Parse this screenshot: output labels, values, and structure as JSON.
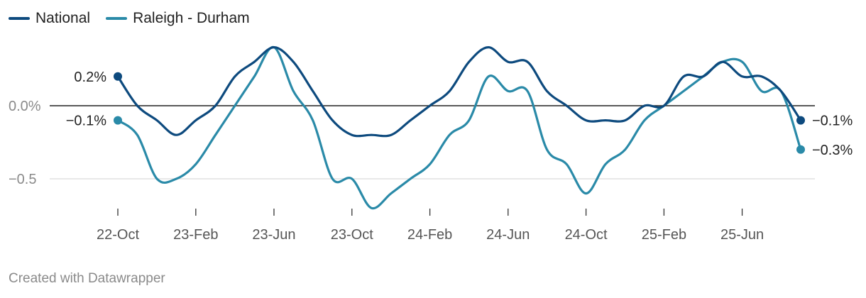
{
  "colors": {
    "national": "#0d4a7e",
    "raleigh": "#2a8aa8",
    "zero_line": "#222222",
    "grid": "#d9d9d9",
    "axis_text": "#8a8a8a",
    "tick_text": "#555555",
    "label_text": "#222222"
  },
  "legend": {
    "national_label": "National",
    "raleigh_label": "Raleigh - Durham"
  },
  "credit": "Created with Datawrapper",
  "chart_data": {
    "type": "line",
    "title": "",
    "xlabel": "",
    "ylabel": "",
    "ylim": [
      -0.7,
      0.4
    ],
    "y_ticks": [
      {
        "value": 0.0,
        "label": "0.0%"
      },
      {
        "value": -0.5,
        "label": "−0.5"
      }
    ],
    "x_range": [
      2022.75,
      2025.667
    ],
    "x_ticks": [
      {
        "value": 2022.75,
        "label": "22-Oct"
      },
      {
        "value": 2023.083,
        "label": "23-Feb"
      },
      {
        "value": 2023.417,
        "label": "23-Jun"
      },
      {
        "value": 2023.75,
        "label": "23-Oct"
      },
      {
        "value": 2024.083,
        "label": "24-Feb"
      },
      {
        "value": 2024.417,
        "label": "24-Jun"
      },
      {
        "value": 2024.75,
        "label": "24-Oct"
      },
      {
        "value": 2025.083,
        "label": "25-Feb"
      },
      {
        "value": 2025.417,
        "label": "25-Jun"
      }
    ],
    "series": [
      {
        "name": "National",
        "color_key": "national",
        "x": [
          2022.75,
          2022.833,
          2022.917,
          2023.0,
          2023.083,
          2023.167,
          2023.25,
          2023.333,
          2023.417,
          2023.5,
          2023.583,
          2023.667,
          2023.75,
          2023.833,
          2023.917,
          2024.0,
          2024.083,
          2024.167,
          2024.25,
          2024.333,
          2024.417,
          2024.5,
          2024.583,
          2024.667,
          2024.75,
          2024.833,
          2024.917,
          2025.0,
          2025.083,
          2025.167,
          2025.25,
          2025.333,
          2025.417,
          2025.5,
          2025.583,
          2025.667
        ],
        "values": [
          0.2,
          0.0,
          -0.1,
          -0.2,
          -0.1,
          0.0,
          0.2,
          0.3,
          0.4,
          0.3,
          0.1,
          -0.1,
          -0.2,
          -0.2,
          -0.2,
          -0.1,
          0.0,
          0.1,
          0.3,
          0.4,
          0.3,
          0.3,
          0.1,
          0.0,
          -0.1,
          -0.1,
          -0.1,
          0.0,
          0.0,
          0.2,
          0.2,
          0.3,
          0.2,
          0.2,
          0.1,
          -0.1
        ],
        "start_label": "0.2%",
        "end_label": "−0.1%"
      },
      {
        "name": "Raleigh - Durham",
        "color_key": "raleigh",
        "x": [
          2022.75,
          2022.833,
          2022.917,
          2023.0,
          2023.083,
          2023.167,
          2023.25,
          2023.333,
          2023.417,
          2023.5,
          2023.583,
          2023.667,
          2023.75,
          2023.833,
          2023.917,
          2024.0,
          2024.083,
          2024.167,
          2024.25,
          2024.333,
          2024.417,
          2024.5,
          2024.583,
          2024.667,
          2024.75,
          2024.833,
          2024.917,
          2025.0,
          2025.083,
          2025.167,
          2025.25,
          2025.333,
          2025.417,
          2025.5,
          2025.583,
          2025.667
        ],
        "values": [
          -0.1,
          -0.2,
          -0.5,
          -0.5,
          -0.4,
          -0.2,
          0.0,
          0.2,
          0.4,
          0.1,
          -0.1,
          -0.5,
          -0.5,
          -0.7,
          -0.6,
          -0.5,
          -0.4,
          -0.2,
          -0.1,
          0.2,
          0.1,
          0.1,
          -0.3,
          -0.4,
          -0.6,
          -0.4,
          -0.3,
          -0.1,
          0.0,
          0.1,
          0.2,
          0.3,
          0.3,
          0.1,
          0.1,
          -0.3
        ],
        "start_label": "−0.1%",
        "end_label": "−0.3%"
      }
    ]
  }
}
